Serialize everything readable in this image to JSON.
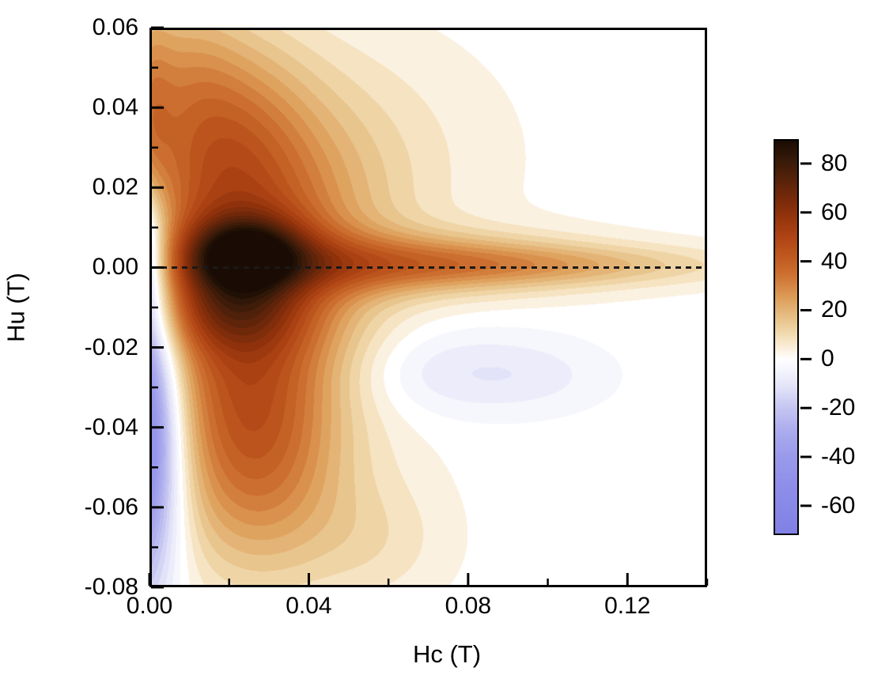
{
  "figure": {
    "background": "#ffffff",
    "kind": "FORC-style filled contour diagram"
  },
  "axes": {
    "x": {
      "title": "Hc (T)",
      "range": [
        0.0,
        0.14
      ],
      "major_tick_values": [
        0.0,
        0.04,
        0.08,
        0.12
      ],
      "minor_tick_values": [
        0.02,
        0.06,
        0.1,
        0.14
      ],
      "tick_labels": [
        "0.00",
        "0.04",
        "0.08",
        "0.12"
      ]
    },
    "y": {
      "title": "Hu (T)",
      "range": [
        -0.08,
        0.06
      ],
      "major_tick_values": [
        0.06,
        0.04,
        0.02,
        0.0,
        -0.02,
        -0.04,
        -0.06,
        -0.08
      ],
      "minor_tick_values": [
        0.05,
        0.03,
        0.01,
        -0.01,
        -0.03,
        -0.05,
        -0.07
      ],
      "tick_labels": [
        "0.06",
        "0.04",
        "0.02",
        "0.00",
        "-0.02",
        "-0.04",
        "-0.06",
        "-0.08"
      ]
    }
  },
  "colorbar": {
    "range": [
      -72,
      90
    ],
    "tick_values": [
      80,
      60,
      40,
      20,
      0,
      -20,
      -40,
      -60
    ],
    "tick_labels": [
      "80",
      "60",
      "40",
      "20",
      "0",
      "-20",
      "-40",
      "-60"
    ],
    "orientation": "vertical",
    "position": "right"
  },
  "annotations": {
    "zero_line": {
      "y_value": 0.0,
      "style": "dashed",
      "color": "#191919"
    }
  },
  "chart_data": {
    "type": "heatmap",
    "xlabel": "Hc (T)",
    "ylabel": "Hu (T)",
    "xlim": [
      0.0,
      0.14
    ],
    "ylim": [
      -0.08,
      0.06
    ],
    "zlim": [
      -72,
      90
    ],
    "grid": false,
    "legend": "colorbar-right",
    "contour_step": 4,
    "colormap": [
      {
        "v": -72,
        "c": "#8181e6"
      },
      {
        "v": -55,
        "c": "#8c8ce9"
      },
      {
        "v": -40,
        "c": "#9a9aeb"
      },
      {
        "v": -30,
        "c": "#ababee"
      },
      {
        "v": -20,
        "c": "#c6c6f2"
      },
      {
        "v": -12,
        "c": "#e2e2f8"
      },
      {
        "v": -5,
        "c": "#f4f4fd"
      },
      {
        "v": 0,
        "c": "#ffffff"
      },
      {
        "v": 5,
        "c": "#faeed8"
      },
      {
        "v": 10,
        "c": "#f2dcb2"
      },
      {
        "v": 18,
        "c": "#e6bd82"
      },
      {
        "v": 26,
        "c": "#dc9a55"
      },
      {
        "v": 34,
        "c": "#cf7434"
      },
      {
        "v": 42,
        "c": "#c05a20"
      },
      {
        "v": 50,
        "c": "#b04515"
      },
      {
        "v": 58,
        "c": "#96350d"
      },
      {
        "v": 66,
        "c": "#782a0a"
      },
      {
        "v": 74,
        "c": "#57220a"
      },
      {
        "v": 82,
        "c": "#371a08"
      },
      {
        "v": 90,
        "c": "#1a0c04"
      }
    ],
    "density_model_gaussians": [
      {
        "name": "broad-positive-cloud",
        "cx": 0.024,
        "cy": -0.002,
        "sx": 0.021,
        "sy": 0.025,
        "amp": 40
      },
      {
        "name": "main-dark-peak",
        "cx": 0.024,
        "cy": 0.004,
        "sx": 0.01,
        "sy": 0.0062,
        "amp": 46
      },
      {
        "name": "secondary-dark-lobe",
        "cx": 0.021,
        "cy": -0.01,
        "sx": 0.012,
        "sy": 0.0075,
        "amp": 24
      },
      {
        "name": "horizontal-ridge",
        "cx": 0.062,
        "cy": 0.001,
        "sx": 0.034,
        "sy": 0.0055,
        "amp": 28
      },
      {
        "name": "ridge-tail-right",
        "cx": 0.105,
        "cy": 0.0005,
        "sx": 0.034,
        "sy": 0.0035,
        "amp": 13
      },
      {
        "name": "upper-lobe",
        "cx": 0.019,
        "cy": 0.033,
        "sx": 0.014,
        "sy": 0.019,
        "amp": 20
      },
      {
        "name": "upper-haze",
        "cx": 0.04,
        "cy": 0.028,
        "sx": 0.03,
        "sy": 0.021,
        "amp": 10
      },
      {
        "name": "top-left-edge",
        "cx": 0.007,
        "cy": 0.05,
        "sx": 0.01,
        "sy": 0.016,
        "amp": 12
      },
      {
        "name": "left-edge-band-top",
        "cx": 0.0,
        "cy": 0.035,
        "sx": 0.004,
        "sy": 0.022,
        "amp": 14
      },
      {
        "name": "lower-lobe",
        "cx": 0.026,
        "cy": -0.042,
        "sx": 0.014,
        "sy": 0.022,
        "amp": 30
      },
      {
        "name": "lower-haze",
        "cx": 0.034,
        "cy": -0.058,
        "sx": 0.022,
        "sy": 0.018,
        "amp": 7
      },
      {
        "name": "bottom-protrusion",
        "cx": 0.057,
        "cy": -0.069,
        "sx": 0.013,
        "sy": 0.011,
        "amp": 6
      },
      {
        "name": "left-negative-strip",
        "cx": -0.004,
        "cy": -0.04,
        "sx": 0.0075,
        "sy": 0.026,
        "amp": -75
      },
      {
        "name": "left-negative-strip-upper",
        "cx": -0.003,
        "cy": 0.006,
        "sx": 0.005,
        "sy": 0.012,
        "amp": -40
      },
      {
        "name": "faint-negative-blob",
        "cx": 0.072,
        "cy": -0.026,
        "sx": 0.017,
        "sy": 0.008,
        "amp": -9
      },
      {
        "name": "faint-negative-blob-2",
        "cx": 0.097,
        "cy": -0.027,
        "sx": 0.014,
        "sy": 0.0065,
        "amp": -6
      }
    ]
  }
}
